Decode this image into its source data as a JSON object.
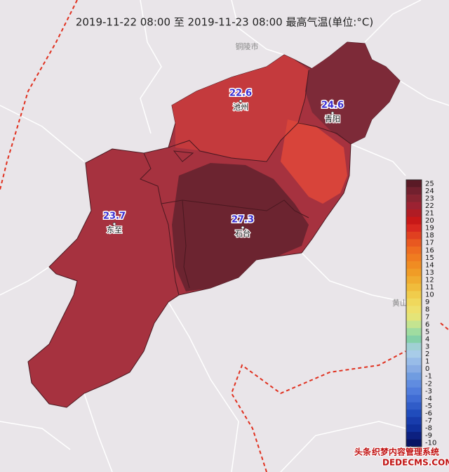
{
  "header": {
    "title": "2019-11-22 08:00 至 2019-11-23 08:00 最高气温(单位:°C)"
  },
  "background_labels": [
    "铜陵市",
    "黄山"
  ],
  "stations": [
    {
      "name": "池州",
      "value": "22.6"
    },
    {
      "name": "青阳",
      "value": "24.6"
    },
    {
      "name": "东至",
      "value": "23.7"
    },
    {
      "name": "石台",
      "value": "27.3"
    }
  ],
  "legend": {
    "items": [
      {
        "value": 25,
        "color": "#5a1a26"
      },
      {
        "value": 24,
        "color": "#72202e"
      },
      {
        "value": 23,
        "color": "#872431"
      },
      {
        "value": 22,
        "color": "#9c2232"
      },
      {
        "value": 21,
        "color": "#b01c24"
      },
      {
        "value": 20,
        "color": "#c81818"
      },
      {
        "value": 19,
        "color": "#d82820"
      },
      {
        "value": 18,
        "color": "#e04020"
      },
      {
        "value": 17,
        "color": "#e85820"
      },
      {
        "value": 16,
        "color": "#ee6c20"
      },
      {
        "value": 15,
        "color": "#f07c20"
      },
      {
        "value": 14,
        "color": "#f08c22"
      },
      {
        "value": 13,
        "color": "#f09c26"
      },
      {
        "value": 12,
        "color": "#f0ac30"
      },
      {
        "value": 11,
        "color": "#f0bc3c"
      },
      {
        "value": 10,
        "color": "#f0cc4c"
      },
      {
        "value": 9,
        "color": "#f0d85c"
      },
      {
        "value": 8,
        "color": "#eee06c"
      },
      {
        "value": 7,
        "color": "#e4e478"
      },
      {
        "value": 6,
        "color": "#c4e490"
      },
      {
        "value": 5,
        "color": "#a0dca0"
      },
      {
        "value": 4,
        "color": "#84d0a8"
      },
      {
        "value": 3,
        "color": "#a0d0d4"
      },
      {
        "value": 2,
        "color": "#a8cce8"
      },
      {
        "value": 1,
        "color": "#98bce8"
      },
      {
        "value": 0,
        "color": "#88ace4"
      },
      {
        "value": -1,
        "color": "#709ce0"
      },
      {
        "value": -2,
        "color": "#608ce0"
      },
      {
        "value": -3,
        "color": "#507cdc"
      },
      {
        "value": -4,
        "color": "#406cd4"
      },
      {
        "value": -5,
        "color": "#305cc8"
      },
      {
        "value": -6,
        "color": "#204cbc"
      },
      {
        "value": -7,
        "color": "#183cac"
      },
      {
        "value": -8,
        "color": "#10309c"
      },
      {
        "value": -9,
        "color": "#0c2080"
      },
      {
        "value": -10,
        "color": "#081464"
      }
    ]
  },
  "watermark": [
    "头条",
    "织梦内容管理系统",
    "DEDECMS.COM"
  ]
}
